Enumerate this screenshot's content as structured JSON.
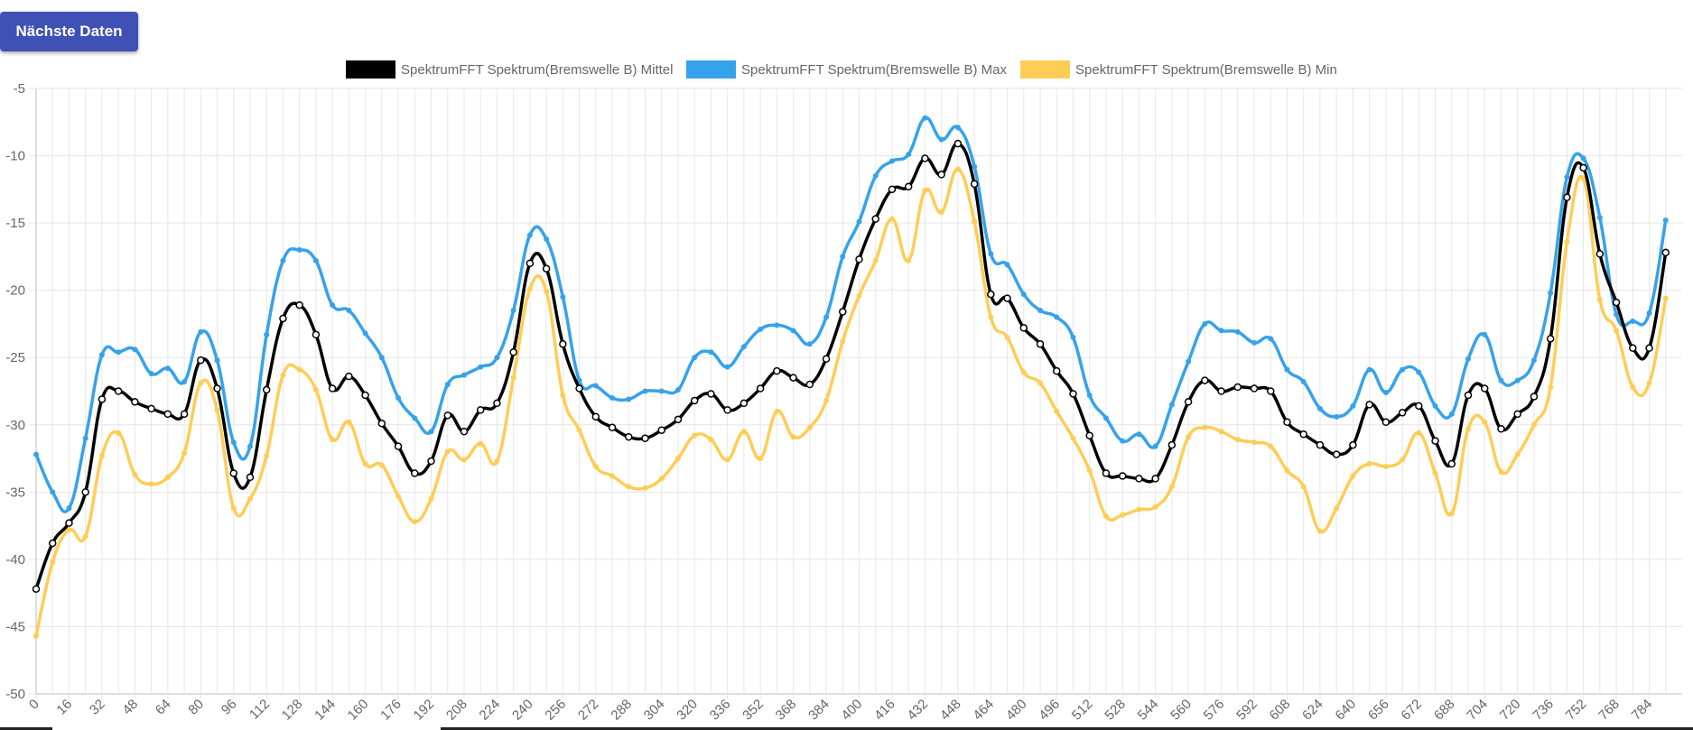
{
  "toolbar": {
    "next_label": "Nächste Daten"
  },
  "chart_data": {
    "type": "line",
    "title": "",
    "xlabel": "",
    "ylabel": "",
    "grid": true,
    "legend_position": "top",
    "ylim": [
      -50,
      -5
    ],
    "yticks": [
      -5,
      -10,
      -15,
      -20,
      -25,
      -30,
      -35,
      -40,
      -45,
      -50
    ],
    "xlim": [
      0,
      800
    ],
    "xticks": [
      0,
      16,
      32,
      48,
      64,
      80,
      96,
      112,
      128,
      144,
      160,
      176,
      192,
      208,
      224,
      240,
      256,
      272,
      288,
      304,
      320,
      336,
      352,
      368,
      384,
      400,
      416,
      432,
      448,
      464,
      480,
      496,
      512,
      528,
      544,
      560,
      576,
      592,
      608,
      624,
      640,
      656,
      672,
      688,
      704,
      720,
      736,
      752,
      768,
      784
    ],
    "series": [
      {
        "name": "SpektrumFFT Spektrum(Bremswelle B) Max",
        "color": "#36a2eb",
        "x": [
          0,
          8,
          16,
          24,
          32,
          40,
          48,
          56,
          64,
          72,
          80,
          88,
          96,
          104,
          112,
          120,
          128,
          136,
          144,
          152,
          160,
          168,
          176,
          184,
          192,
          200,
          208,
          216,
          224,
          232,
          240,
          248,
          256,
          264,
          272,
          280,
          288,
          296,
          304,
          312,
          320,
          328,
          336,
          344,
          352,
          360,
          368,
          376,
          384,
          392,
          400,
          408,
          416,
          424,
          432,
          440,
          448,
          456,
          464,
          472,
          480,
          488,
          496,
          504,
          512,
          520,
          528,
          536,
          544,
          552,
          560,
          568,
          576,
          584,
          592,
          600,
          608,
          616,
          624,
          632,
          640,
          648,
          656,
          664,
          672,
          680,
          688,
          696,
          704,
          712,
          720,
          728,
          736,
          744,
          752,
          760,
          768,
          776,
          784,
          792
        ],
        "values": [
          -32.2,
          -35.0,
          -36.2,
          -31.0,
          -24.8,
          -24.6,
          -24.4,
          -26.2,
          -25.8,
          -26.8,
          -23.1,
          -25.2,
          -31.3,
          -31.6,
          -23.3,
          -17.8,
          -17.0,
          -17.8,
          -21.1,
          -21.5,
          -23.2,
          -25.0,
          -28.0,
          -29.5,
          -30.5,
          -27.0,
          -26.3,
          -25.7,
          -25.0,
          -21.5,
          -15.9,
          -16.2,
          -20.5,
          -26.7,
          -27.1,
          -28.0,
          -28.1,
          -27.5,
          -27.5,
          -27.4,
          -25.0,
          -24.6,
          -25.7,
          -24.2,
          -22.9,
          -22.6,
          -23.0,
          -24.0,
          -22.0,
          -17.5,
          -14.9,
          -11.5,
          -10.4,
          -9.9,
          -7.2,
          -8.8,
          -7.9,
          -10.8,
          -17.3,
          -18.1,
          -20.3,
          -21.5,
          -22.0,
          -23.5,
          -27.8,
          -29.5,
          -31.2,
          -30.7,
          -31.6,
          -28.5,
          -25.3,
          -22.5,
          -23.0,
          -23.1,
          -23.9,
          -23.6,
          -25.9,
          -26.8,
          -28.8,
          -29.4,
          -28.6,
          -25.9,
          -27.6,
          -25.9,
          -26.1,
          -28.6,
          -29.2,
          -25.1,
          -23.3,
          -26.7,
          -26.7,
          -25.2,
          -20.2,
          -11.6,
          -10.2,
          -14.6,
          -21.8,
          -22.3,
          -21.7,
          -14.8
        ]
      },
      {
        "name": "SpektrumFFT Spektrum(Bremswelle B) Mittel",
        "color": "#000000",
        "x": [
          0,
          8,
          16,
          24,
          32,
          40,
          48,
          56,
          64,
          72,
          80,
          88,
          96,
          104,
          112,
          120,
          128,
          136,
          144,
          152,
          160,
          168,
          176,
          184,
          192,
          200,
          208,
          216,
          224,
          232,
          240,
          248,
          256,
          264,
          272,
          280,
          288,
          296,
          304,
          312,
          320,
          328,
          336,
          344,
          352,
          360,
          368,
          376,
          384,
          392,
          400,
          408,
          416,
          424,
          432,
          440,
          448,
          456,
          464,
          472,
          480,
          488,
          496,
          504,
          512,
          520,
          528,
          536,
          544,
          552,
          560,
          568,
          576,
          584,
          592,
          600,
          608,
          616,
          624,
          632,
          640,
          648,
          656,
          664,
          672,
          680,
          688,
          696,
          704,
          712,
          720,
          728,
          736,
          744,
          752,
          760,
          768,
          776,
          784,
          792
        ],
        "values": [
          -42.2,
          -38.8,
          -37.3,
          -35.0,
          -28.1,
          -27.5,
          -28.3,
          -28.8,
          -29.2,
          -29.2,
          -25.2,
          -27.3,
          -33.6,
          -33.9,
          -27.4,
          -22.1,
          -21.1,
          -23.3,
          -27.3,
          -26.4,
          -27.8,
          -29.9,
          -31.6,
          -33.6,
          -32.7,
          -29.3,
          -30.5,
          -28.9,
          -28.4,
          -24.6,
          -18.0,
          -18.4,
          -24.0,
          -27.3,
          -29.4,
          -30.2,
          -30.9,
          -31.0,
          -30.4,
          -29.6,
          -28.2,
          -27.7,
          -28.9,
          -28.4,
          -27.3,
          -26.0,
          -26.5,
          -27.0,
          -25.1,
          -21.6,
          -17.7,
          -14.7,
          -12.5,
          -12.3,
          -10.2,
          -11.4,
          -9.1,
          -12.1,
          -20.3,
          -20.6,
          -22.8,
          -24.0,
          -26.0,
          -27.7,
          -30.8,
          -33.6,
          -33.8,
          -34.0,
          -34.0,
          -31.5,
          -28.3,
          -26.7,
          -27.5,
          -27.2,
          -27.3,
          -27.5,
          -29.8,
          -30.7,
          -31.5,
          -32.2,
          -31.5,
          -28.5,
          -29.8,
          -29.1,
          -28.6,
          -31.2,
          -32.9,
          -27.8,
          -27.3,
          -30.3,
          -29.2,
          -27.9,
          -23.6,
          -13.1,
          -10.9,
          -17.3,
          -20.9,
          -24.3,
          -24.3,
          -17.2
        ]
      },
      {
        "name": "SpektrumFFT Spektrum(Bremswelle B) Min",
        "color": "#ffcd56",
        "x": [
          0,
          8,
          16,
          24,
          32,
          40,
          48,
          56,
          64,
          72,
          80,
          88,
          96,
          104,
          112,
          120,
          128,
          136,
          144,
          152,
          160,
          168,
          176,
          184,
          192,
          200,
          208,
          216,
          224,
          232,
          240,
          248,
          256,
          264,
          272,
          280,
          288,
          296,
          304,
          312,
          320,
          328,
          336,
          344,
          352,
          360,
          368,
          376,
          384,
          392,
          400,
          408,
          416,
          424,
          432,
          440,
          448,
          456,
          464,
          472,
          480,
          488,
          496,
          504,
          512,
          520,
          528,
          536,
          544,
          552,
          560,
          568,
          576,
          584,
          592,
          600,
          608,
          616,
          624,
          632,
          640,
          648,
          656,
          664,
          672,
          680,
          688,
          696,
          704,
          712,
          720,
          728,
          736,
          744,
          752,
          760,
          768,
          776,
          784,
          792
        ],
        "values": [
          -45.7,
          -40.2,
          -37.8,
          -38.3,
          -32.3,
          -30.6,
          -33.7,
          -34.4,
          -33.9,
          -32.1,
          -26.9,
          -28.9,
          -36.2,
          -35.5,
          -32.3,
          -26.3,
          -25.9,
          -27.4,
          -31.1,
          -29.8,
          -32.9,
          -33.0,
          -35.3,
          -37.2,
          -35.5,
          -32.0,
          -32.6,
          -31.4,
          -32.7,
          -26.5,
          -19.9,
          -20.1,
          -27.8,
          -30.4,
          -33.1,
          -33.8,
          -34.6,
          -34.7,
          -34.0,
          -32.5,
          -30.8,
          -31.1,
          -32.6,
          -30.5,
          -32.5,
          -29.0,
          -30.9,
          -30.2,
          -28.2,
          -23.8,
          -20.4,
          -17.8,
          -14.7,
          -17.8,
          -12.6,
          -14.2,
          -11.0,
          -14.9,
          -22.0,
          -23.5,
          -26.1,
          -26.9,
          -29.0,
          -31.0,
          -33.4,
          -36.8,
          -36.7,
          -36.3,
          -36.1,
          -34.6,
          -30.9,
          -30.2,
          -30.5,
          -31.1,
          -31.3,
          -31.6,
          -33.4,
          -34.6,
          -37.9,
          -36.2,
          -33.8,
          -32.9,
          -33.1,
          -32.6,
          -30.6,
          -33.6,
          -36.6,
          -30.3,
          -29.8,
          -33.5,
          -32.2,
          -30.0,
          -27.2,
          -16.4,
          -11.7,
          -20.7,
          -23.0,
          -27.2,
          -26.9,
          -20.6
        ]
      }
    ]
  }
}
